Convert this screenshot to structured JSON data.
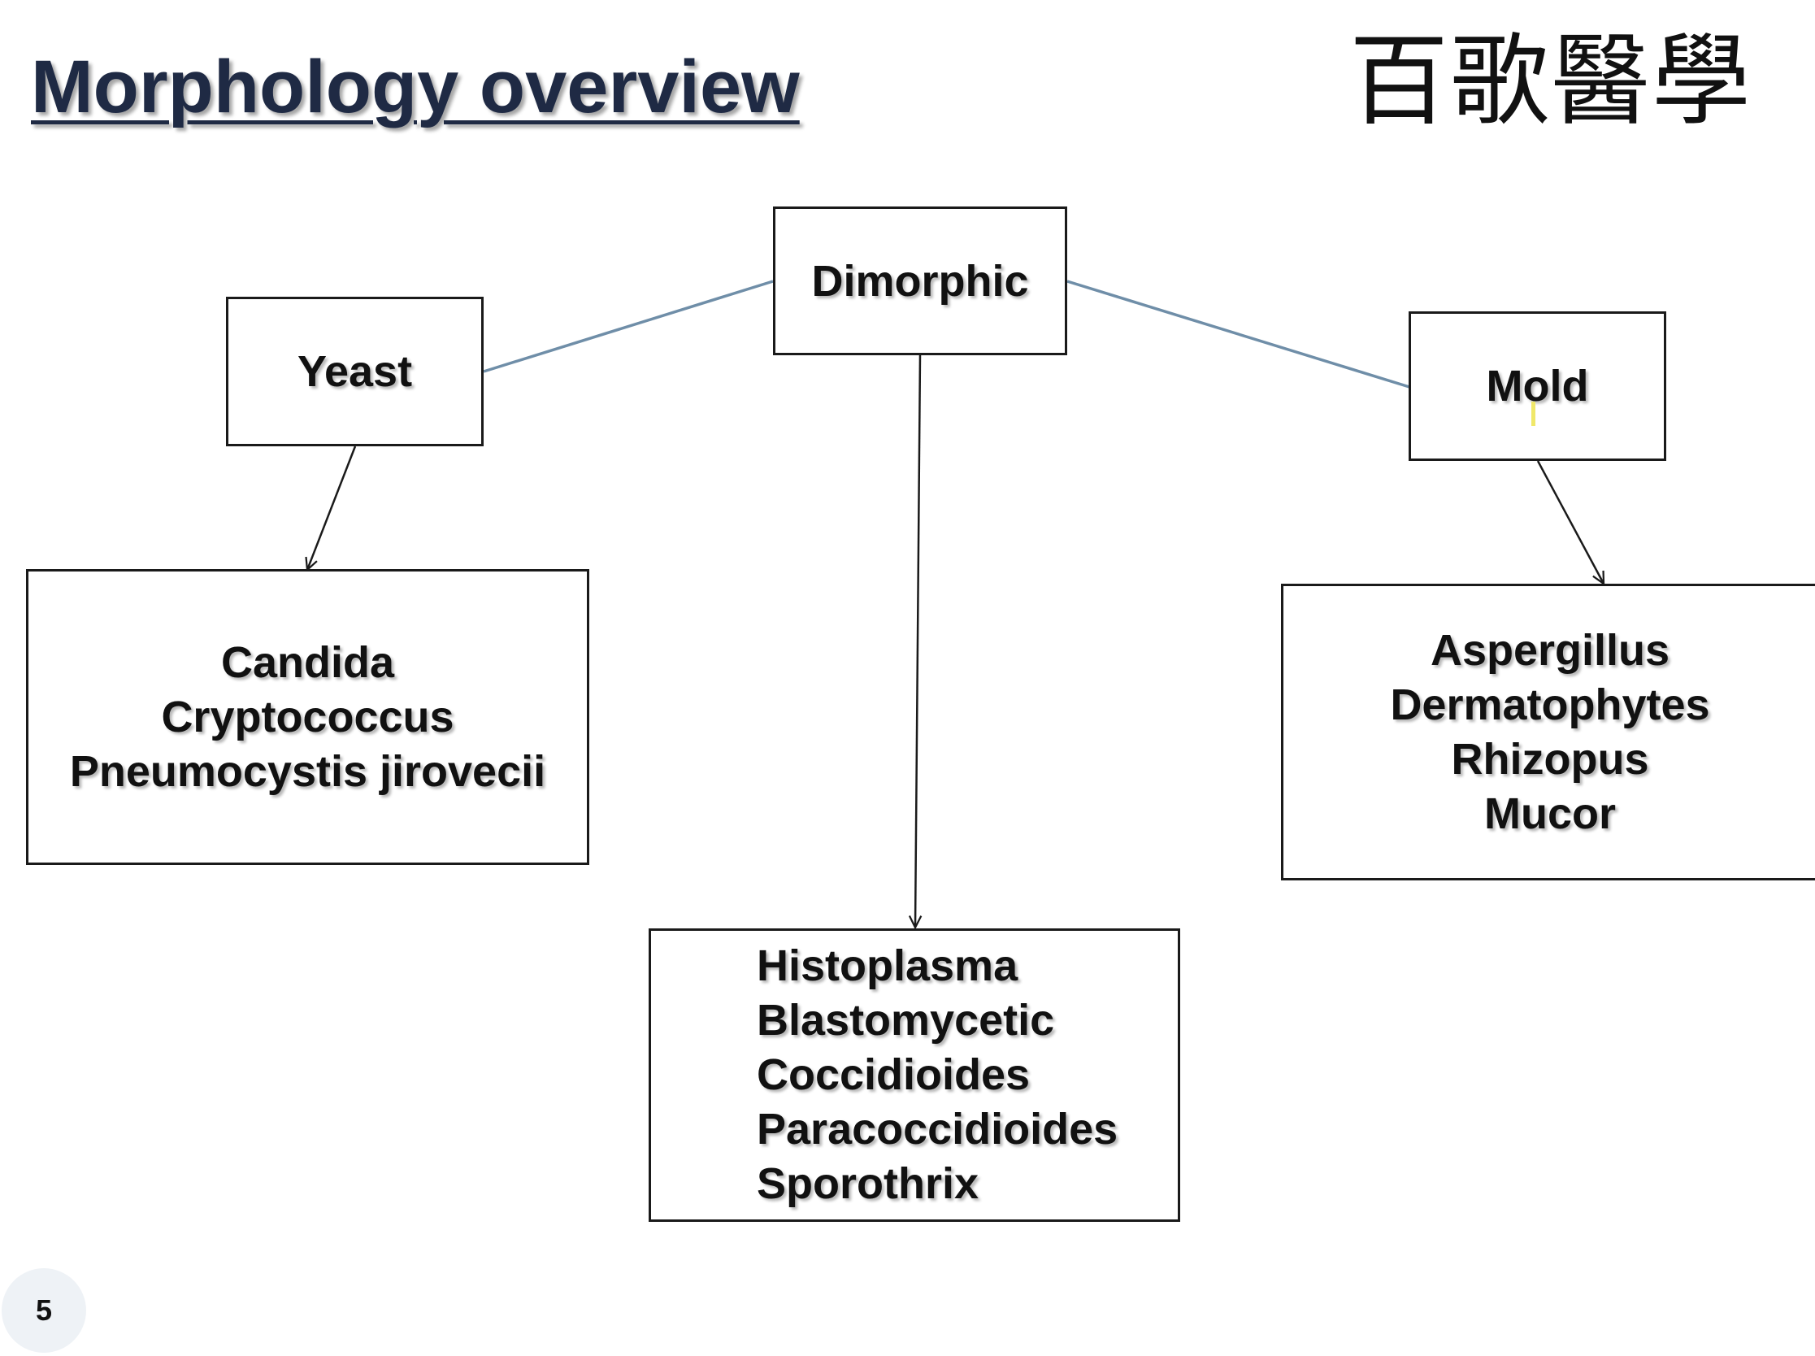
{
  "slide": {
    "title": "Morphology overview",
    "logo_text": "百歌醫學",
    "page_number": "5"
  },
  "diagram": {
    "root": {
      "label": "Dimorphic"
    },
    "yeast": {
      "label": "Yeast",
      "examples": [
        "Candida",
        "Cryptococcus",
        "Pneumocystis jirovecii"
      ]
    },
    "mold": {
      "label": "Mold",
      "examples": [
        "Aspergillus",
        "Dermatophytes",
        "Rhizopus",
        "Mucor"
      ]
    },
    "dimorphic_examples": [
      "Histoplasma",
      "Blastomycetic",
      "Coccidioides",
      "Paracoccidioides",
      "Sporothrix"
    ]
  },
  "colors": {
    "title": "#1f2a44",
    "connector_line": "#6f8ea8",
    "arrow_line": "#1a1a1a",
    "box_border": "#1a1a1a"
  }
}
